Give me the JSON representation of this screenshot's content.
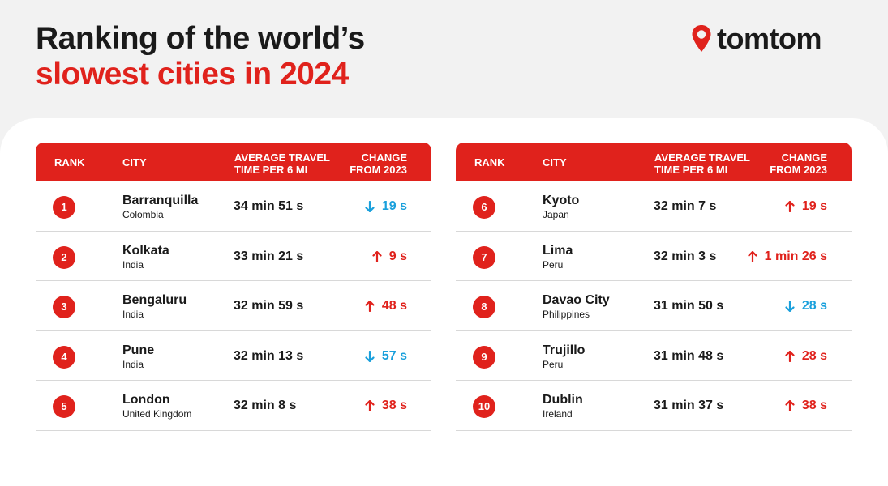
{
  "headline": {
    "line1": "Ranking of the world’s",
    "line2": "slowest cities in 2024"
  },
  "brand": {
    "name": "tomtom",
    "icon": "map-pin-icon",
    "accent": "#e0221c"
  },
  "colors": {
    "accent": "#e0221c",
    "increase": "#e0221c",
    "decrease": "#1aa0dc"
  },
  "tables": [
    {
      "headers": {
        "rank": "RANK",
        "city": "CITY",
        "time_line1": "AVERAGE TRAVEL",
        "time_line2": "TIME PER 6 MI",
        "change_line1": "CHANGE",
        "change_line2": "FROM 2023"
      },
      "rows": [
        {
          "rank": "1",
          "city": "Barranquilla",
          "country": "Colombia",
          "time": "34 min 51 s",
          "change": "19 s",
          "direction": "down"
        },
        {
          "rank": "2",
          "city": "Kolkata",
          "country": "India",
          "time": "33 min 21 s",
          "change": "9 s",
          "direction": "up"
        },
        {
          "rank": "3",
          "city": "Bengaluru",
          "country": "India",
          "time": "32 min 59 s",
          "change": "48 s",
          "direction": "up"
        },
        {
          "rank": "4",
          "city": "Pune",
          "country": "India",
          "time": "32 min 13 s",
          "change": "57 s",
          "direction": "down"
        },
        {
          "rank": "5",
          "city": "London",
          "country": "United Kingdom",
          "time": "32 min 8 s",
          "change": "38 s",
          "direction": "up"
        }
      ]
    },
    {
      "headers": {
        "rank": "RANK",
        "city": "CITY",
        "time_line1": "AVERAGE TRAVEL",
        "time_line2": "TIME PER 6 MI",
        "change_line1": "CHANGE",
        "change_line2": "FROM 2023"
      },
      "rows": [
        {
          "rank": "6",
          "city": "Kyoto",
          "country": "Japan",
          "time": "32 min 7 s",
          "change": "19 s",
          "direction": "up"
        },
        {
          "rank": "7",
          "city": "Lima",
          "country": "Peru",
          "time": "32 min 3 s",
          "change": "1 min 26 s",
          "direction": "up"
        },
        {
          "rank": "8",
          "city": "Davao City",
          "country": "Philippines",
          "time": "31 min 50 s",
          "change": "28 s",
          "direction": "down"
        },
        {
          "rank": "9",
          "city": "Trujillo",
          "country": "Peru",
          "time": "31 min 48 s",
          "change": "28 s",
          "direction": "up"
        },
        {
          "rank": "10",
          "city": "Dublin",
          "country": "Ireland",
          "time": "31 min 37 s",
          "change": "38 s",
          "direction": "up"
        }
      ]
    }
  ]
}
